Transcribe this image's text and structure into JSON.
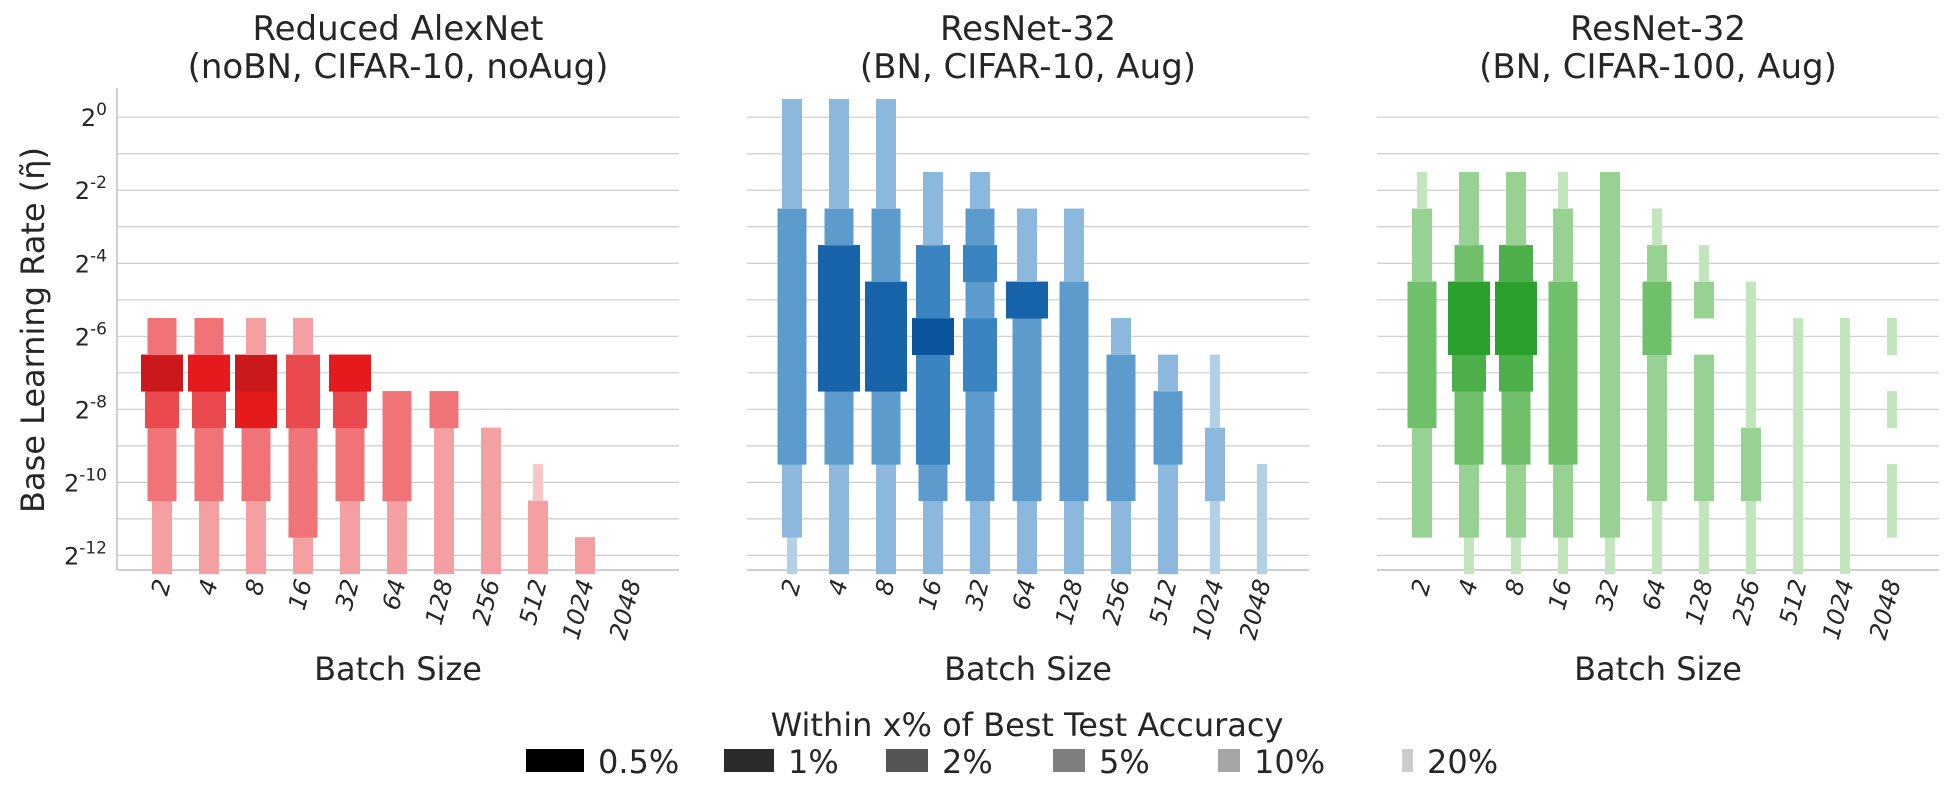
{
  "chart_data": {
    "type": "heatmap",
    "ylabel": "Base Learning Rate (η̃)",
    "xlabel": "Batch Size",
    "batch_sizes": [
      "2",
      "4",
      "8",
      "16",
      "32",
      "64",
      "128",
      "256",
      "512",
      "1024",
      "2048"
    ],
    "y_tick_labels": [
      {
        "base": "2",
        "exp": "0",
        "value": 0
      },
      {
        "base": "2",
        "exp": "-2",
        "value": -2
      },
      {
        "base": "2",
        "exp": "-4",
        "value": -4
      },
      {
        "base": "2",
        "exp": "-6",
        "value": -6
      },
      {
        "base": "2",
        "exp": "-8",
        "value": -8
      },
      {
        "base": "2",
        "exp": "-10",
        "value": -10
      },
      {
        "base": "2",
        "exp": "-12",
        "value": -12
      }
    ],
    "ylim_log2": [
      -12.4,
      0.8
    ],
    "value_description": "For each batch size and log2 learning rate, the tightest accuracy threshold (x%) within which test accuracy falls of the best run; 0 = not within 20%",
    "legend": {
      "title": "Within x% of Best Test Accuracy",
      "entries": [
        {
          "label": "0.5%",
          "threshold": 0.5
        },
        {
          "label": "1%",
          "threshold": 1
        },
        {
          "label": "2%",
          "threshold": 2
        },
        {
          "label": "5%",
          "threshold": 5
        },
        {
          "label": "10%",
          "threshold": 10
        },
        {
          "label": "20%",
          "threshold": 20
        }
      ]
    },
    "panels": [
      {
        "title_line1": "Reduced AlexNet",
        "title_line2": "(noBN, CIFAR-10, noAug)",
        "palette": [
          "#cb181d",
          "#e41a1c",
          "#ea4a4e",
          "#ef7377",
          "#f4a0a2",
          "#f8c6c7"
        ],
        "lr_log2": [
          -12,
          -11,
          -10,
          -9,
          -8,
          -7,
          -6,
          -5,
          -4,
          -3,
          -2,
          -1,
          0
        ],
        "thresholds": {
          "2": [
            10,
            10,
            5,
            5,
            2,
            0.5,
            5,
            0,
            0,
            0,
            0,
            0,
            0
          ],
          "4": [
            10,
            10,
            5,
            5,
            2,
            1,
            5,
            0,
            0,
            0,
            0,
            0,
            0
          ],
          "8": [
            10,
            10,
            5,
            5,
            1,
            0.5,
            10,
            0,
            0,
            0,
            0,
            0,
            0
          ],
          "16": [
            10,
            5,
            5,
            5,
            2,
            2,
            10,
            0,
            0,
            0,
            0,
            0,
            0
          ],
          "32": [
            10,
            10,
            5,
            5,
            2,
            1,
            0,
            0,
            0,
            0,
            0,
            0,
            0
          ],
          "64": [
            10,
            10,
            5,
            5,
            5,
            0,
            0,
            0,
            0,
            0,
            0,
            0,
            0
          ],
          "128": [
            10,
            10,
            10,
            10,
            5,
            0,
            0,
            0,
            0,
            0,
            0,
            0,
            0
          ],
          "256": [
            10,
            10,
            10,
            10,
            0,
            0,
            0,
            0,
            0,
            0,
            0,
            0,
            0
          ],
          "512": [
            10,
            10,
            20,
            0,
            0,
            0,
            0,
            0,
            0,
            0,
            0,
            0,
            0
          ],
          "1024": [
            10,
            0,
            0,
            0,
            0,
            0,
            0,
            0,
            0,
            0,
            0,
            0,
            0
          ],
          "2048": [
            0,
            0,
            0,
            0,
            0,
            0,
            0,
            0,
            0,
            0,
            0,
            0,
            0
          ]
        }
      },
      {
        "title_line1": "ResNet-32",
        "title_line2": "(BN, CIFAR-10, Aug)",
        "palette": [
          "#0b559f",
          "#1764ab",
          "#3a84c2",
          "#5d9bcd",
          "#8bb8dc",
          "#b2d0e6"
        ],
        "lr_log2": [
          -12,
          -11,
          -10,
          -9,
          -8,
          -7,
          -6,
          -5,
          -4,
          -3,
          -2,
          -1,
          0
        ],
        "thresholds": {
          "2": [
            20,
            10,
            10,
            5,
            5,
            5,
            5,
            5,
            5,
            5,
            10,
            10,
            10
          ],
          "4": [
            10,
            10,
            10,
            5,
            5,
            1,
            1,
            1,
            1,
            5,
            10,
            10,
            10
          ],
          "8": [
            10,
            10,
            10,
            5,
            5,
            1,
            1,
            1,
            5,
            5,
            10,
            10,
            10
          ],
          "16": [
            10,
            10,
            5,
            2,
            2,
            2,
            0.5,
            2,
            2,
            10,
            10,
            0,
            0
          ],
          "32": [
            10,
            10,
            5,
            5,
            5,
            2,
            2,
            5,
            2,
            5,
            10,
            0,
            0
          ],
          "64": [
            10,
            10,
            5,
            5,
            5,
            5,
            5,
            1,
            10,
            10,
            0,
            0,
            0
          ],
          "128": [
            10,
            10,
            5,
            5,
            5,
            5,
            5,
            5,
            10,
            10,
            0,
            0,
            0
          ],
          "256": [
            10,
            10,
            5,
            5,
            5,
            5,
            10,
            0,
            0,
            0,
            0,
            0,
            0
          ],
          "512": [
            10,
            10,
            10,
            5,
            5,
            10,
            0,
            0,
            0,
            0,
            0,
            0,
            0
          ],
          "1024": [
            20,
            20,
            10,
            10,
            20,
            20,
            0,
            0,
            0,
            0,
            0,
            0,
            0
          ],
          "2048": [
            20,
            20,
            20,
            0,
            0,
            0,
            0,
            0,
            0,
            0,
            0,
            0,
            0
          ]
        }
      },
      {
        "title_line1": "ResNet-32",
        "title_line2": "(BN, CIFAR-100, Aug)",
        "palette": [
          "#2ca02c",
          "#2ca02c",
          "#4daf4a",
          "#6fbf6b",
          "#98d293",
          "#c3e5be"
        ],
        "lr_log2": [
          -12,
          -11,
          -10,
          -9,
          -8,
          -7,
          -6,
          -5,
          -4,
          -3,
          -2,
          -1,
          0
        ],
        "thresholds": {
          "2": [
            0,
            10,
            10,
            10,
            5,
            5,
            5,
            5,
            10,
            10,
            20,
            0,
            0
          ],
          "4": [
            20,
            10,
            10,
            5,
            5,
            2,
            1,
            1,
            5,
            10,
            10,
            0,
            0
          ],
          "8": [
            20,
            10,
            10,
            5,
            5,
            2,
            1,
            1,
            2,
            10,
            10,
            0,
            0
          ],
          "16": [
            20,
            10,
            10,
            5,
            5,
            5,
            5,
            5,
            10,
            10,
            20,
            0,
            0
          ],
          "32": [
            20,
            10,
            10,
            10,
            10,
            10,
            10,
            10,
            10,
            10,
            10,
            0,
            0
          ],
          "64": [
            20,
            20,
            10,
            10,
            10,
            10,
            5,
            5,
            10,
            20,
            0,
            0,
            0
          ],
          "128": [
            20,
            20,
            10,
            10,
            10,
            10,
            0,
            10,
            20,
            0,
            0,
            0,
            0
          ],
          "256": [
            20,
            20,
            10,
            10,
            20,
            20,
            20,
            20,
            0,
            0,
            0,
            0,
            0
          ],
          "512": [
            20,
            20,
            20,
            20,
            20,
            20,
            20,
            0,
            0,
            0,
            0,
            0,
            0
          ],
          "1024": [
            20,
            20,
            20,
            20,
            20,
            20,
            20,
            0,
            0,
            0,
            0,
            0,
            0
          ],
          "2048": [
            0,
            20,
            20,
            0,
            20,
            0,
            20,
            0,
            0,
            0,
            0,
            0,
            0
          ]
        }
      }
    ]
  }
}
